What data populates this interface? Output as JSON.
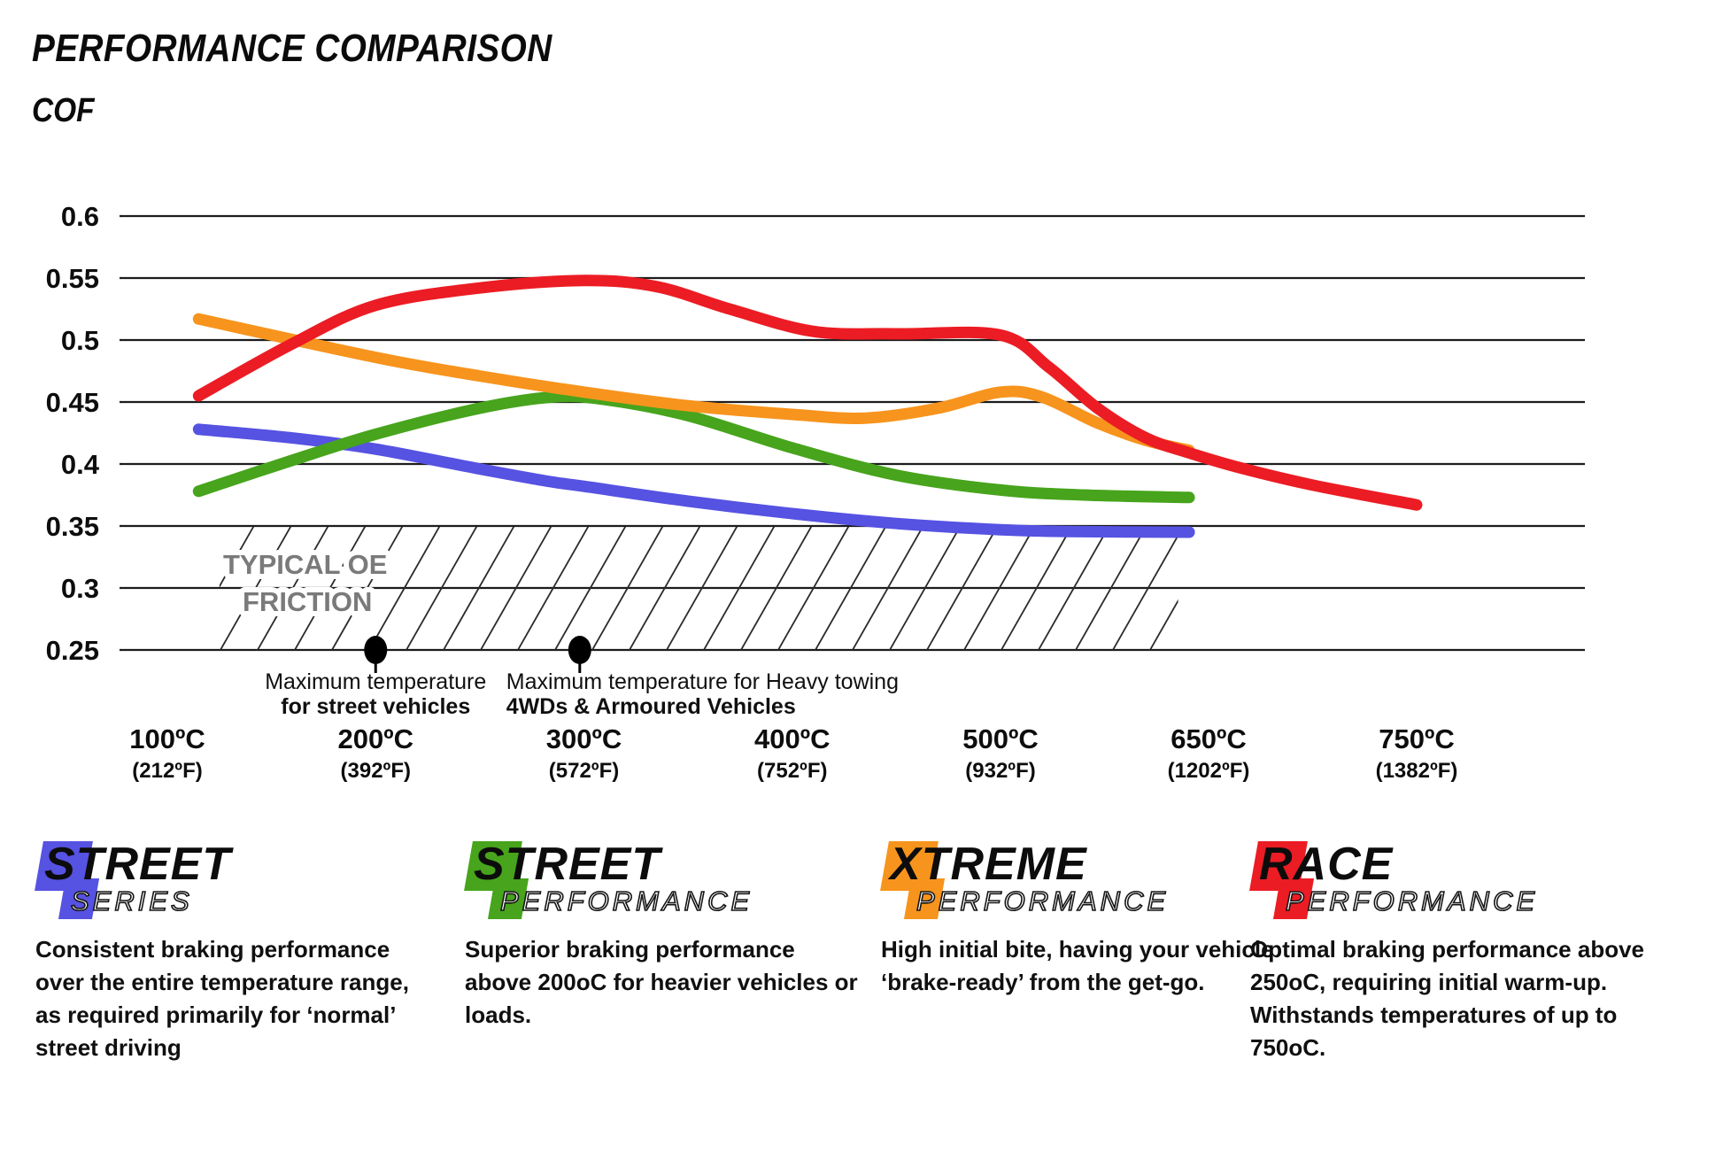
{
  "page": {
    "title": "PERFORMANCE COMPARISON",
    "y_axis_title": "COF"
  },
  "chart_data": {
    "type": "line",
    "title": "PERFORMANCE COMPARISON",
    "ylabel": "COF",
    "ylim": [
      0.25,
      0.6
    ],
    "grid": "horizontal",
    "legend_position": "bottom",
    "y_ticks": [
      {
        "value": 0.6,
        "label": "0.6"
      },
      {
        "value": 0.55,
        "label": "0.55"
      },
      {
        "value": 0.5,
        "label": "0.5"
      },
      {
        "value": 0.45,
        "label": "0.45"
      },
      {
        "value": 0.4,
        "label": "0.4"
      },
      {
        "value": 0.35,
        "label": "0.35"
      },
      {
        "value": 0.3,
        "label": "0.3"
      },
      {
        "value": 0.25,
        "label": "0.25"
      }
    ],
    "x_ticks": [
      {
        "t": 100,
        "label": "100ºC",
        "sub": "(212ºF)"
      },
      {
        "t": 200,
        "label": "200ºC",
        "sub": "(392ºF)"
      },
      {
        "t": 300,
        "label": "300ºC",
        "sub": "(572ºF)"
      },
      {
        "t": 400,
        "label": "400ºC",
        "sub": "(752ºF)"
      },
      {
        "t": 500,
        "label": "500ºC",
        "sub": "(932ºF)"
      },
      {
        "t": 650,
        "label": "650ºC",
        "sub": "(1202ºF)"
      },
      {
        "t": 750,
        "label": "750ºC",
        "sub": "(1382ºF)"
      }
    ],
    "series": [
      {
        "name": "Street Series",
        "color": "#5652e2",
        "points": [
          [
            115,
            0.428
          ],
          [
            160,
            0.421
          ],
          [
            200,
            0.412
          ],
          [
            250,
            0.396
          ],
          [
            283,
            0.386
          ],
          [
            300,
            0.382
          ],
          [
            350,
            0.37
          ],
          [
            400,
            0.36
          ],
          [
            450,
            0.352
          ],
          [
            500,
            0.347
          ],
          [
            550,
            0.3455
          ],
          [
            636,
            0.345
          ]
        ]
      },
      {
        "name": "Street Performance",
        "color": "#47a41c",
        "points": [
          [
            115,
            0.378
          ],
          [
            160,
            0.403
          ],
          [
            200,
            0.424
          ],
          [
            250,
            0.445
          ],
          [
            285,
            0.454
          ],
          [
            310,
            0.452
          ],
          [
            350,
            0.439
          ],
          [
            400,
            0.413
          ],
          [
            450,
            0.391
          ],
          [
            500,
            0.379
          ],
          [
            560,
            0.375
          ],
          [
            636,
            0.373
          ]
        ]
      },
      {
        "name": "Xtreme Performance",
        "color": "#f7941d",
        "points": [
          [
            115,
            0.517
          ],
          [
            200,
            0.486
          ],
          [
            250,
            0.471
          ],
          [
            300,
            0.458
          ],
          [
            350,
            0.447
          ],
          [
            400,
            0.44
          ],
          [
            435,
            0.437
          ],
          [
            470,
            0.445
          ],
          [
            500,
            0.458
          ],
          [
            530,
            0.454
          ],
          [
            570,
            0.433
          ],
          [
            605,
            0.419
          ],
          [
            636,
            0.411
          ]
        ]
      },
      {
        "name": "Race Performance",
        "color": "#ec1c24",
        "points": [
          [
            115,
            0.455
          ],
          [
            160,
            0.497
          ],
          [
            200,
            0.528
          ],
          [
            250,
            0.542
          ],
          [
            300,
            0.548
          ],
          [
            335,
            0.543
          ],
          [
            370,
            0.525
          ],
          [
            410,
            0.507
          ],
          [
            450,
            0.505
          ],
          [
            500,
            0.504
          ],
          [
            535,
            0.478
          ],
          [
            570,
            0.445
          ],
          [
            605,
            0.421
          ],
          [
            636,
            0.409
          ],
          [
            665,
            0.397
          ],
          [
            700,
            0.383
          ],
          [
            750,
            0.367
          ]
        ]
      }
    ],
    "oe_band": {
      "label_line1": "TYPICAL OE",
      "label_line2": "FRICTION",
      "t_start": 125,
      "t_end": 628,
      "cof_min": 0.25,
      "cof_max": 0.35
    },
    "annotations": [
      {
        "t": 200,
        "cof": 0.25,
        "line1": "Maximum temperature",
        "line2": "for street vehicles",
        "anchor": "middle",
        "dx": 0
      },
      {
        "t": 298,
        "cof": 0.25,
        "line1": "Maximum temperature for Heavy towing",
        "line2": "4WDs & Armoured Vehicles",
        "anchor": "start",
        "dx": -83
      }
    ]
  },
  "legend": [
    {
      "brand_top": "STREET",
      "brand_bottom": "SERIES",
      "color": "#5652e2",
      "description": "Consistent braking performance over the entire temperature range, as required primarily for ‘normal’ street driving"
    },
    {
      "brand_top": "STREET",
      "brand_bottom": "PERFORMANCE",
      "color": "#47a41c",
      "description": "Superior braking performance above 200oC for heavier vehicles or loads."
    },
    {
      "brand_top": "XTREME",
      "brand_bottom": "PERFORMANCE",
      "color": "#f7941d",
      "description": "High initial bite, having your vehicle ‘brake-ready’ from the get-go."
    },
    {
      "brand_top": "RACE",
      "brand_bottom": "PERFORMANCE",
      "color": "#ec1c24",
      "description": "Optimal braking performance above 250oC, requiring initial warm-up. Withstands temperatures of up to 750oC."
    }
  ]
}
